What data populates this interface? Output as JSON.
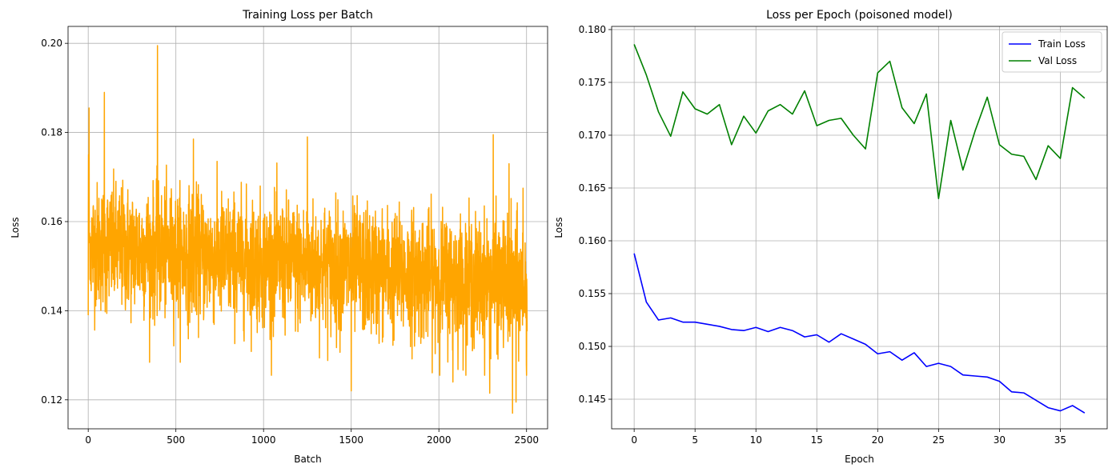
{
  "chart_data": [
    {
      "type": "line",
      "title": "Training Loss per Batch",
      "xlabel": "Batch",
      "ylabel": "Loss",
      "xlim": [
        -115,
        2620
      ],
      "ylim": [
        0.1135,
        0.2038
      ],
      "xticks": [
        0,
        500,
        1000,
        1500,
        2000,
        2500
      ],
      "yticks": [
        0.12,
        0.14,
        0.16,
        0.18,
        0.2
      ],
      "ytick_labels": [
        "0.12",
        "0.14",
        "0.16",
        "0.18",
        "0.20"
      ],
      "grid": true,
      "colors": {
        "series": "#FFA500"
      },
      "series": [
        {
          "n_points": 2504,
          "x_start": 0,
          "y_mean_start": 0.1545,
          "y_mean_end": 0.1455,
          "y_spread": 0.0115,
          "spikes": [
            {
              "x": 0,
              "y": 0.139
            },
            {
              "x": 2,
              "y": 0.175
            },
            {
              "x": 5,
              "y": 0.1855
            },
            {
              "x": 10,
              "y": 0.147
            },
            {
              "x": 92,
              "y": 0.189
            },
            {
              "x": 395,
              "y": 0.1995
            },
            {
              "x": 600,
              "y": 0.1785
            },
            {
              "x": 1250,
              "y": 0.179
            },
            {
              "x": 1500,
              "y": 0.122
            },
            {
              "x": 2080,
              "y": 0.124
            },
            {
              "x": 2290,
              "y": 0.1215
            },
            {
              "x": 2310,
              "y": 0.1795
            },
            {
              "x": 2400,
              "y": 0.173
            },
            {
              "x": 2420,
              "y": 0.117
            },
            {
              "x": 2440,
              "y": 0.1195
            },
            {
              "x": 2480,
              "y": 0.1675
            },
            {
              "x": 2500,
              "y": 0.1255
            }
          ]
        }
      ]
    },
    {
      "type": "line",
      "title": "Loss per Epoch (poisoned model)",
      "xlabel": "Epoch",
      "ylabel": "Loss",
      "xlim": [
        -1.85,
        38.85
      ],
      "ylim": [
        0.1422,
        0.1803
      ],
      "xticks": [
        0,
        5,
        10,
        15,
        20,
        25,
        30,
        35
      ],
      "yticks": [
        0.145,
        0.15,
        0.155,
        0.16,
        0.165,
        0.17,
        0.175,
        0.18
      ],
      "ytick_labels": [
        "0.145",
        "0.150",
        "0.155",
        "0.160",
        "0.165",
        "0.170",
        "0.175",
        "0.180"
      ],
      "grid": true,
      "legend": "top-right",
      "x": [
        0,
        1,
        2,
        3,
        4,
        5,
        6,
        7,
        8,
        9,
        10,
        11,
        12,
        13,
        14,
        15,
        16,
        17,
        18,
        19,
        20,
        21,
        22,
        23,
        24,
        25,
        26,
        27,
        28,
        29,
        30,
        31,
        32,
        33,
        34,
        35,
        36,
        37
      ],
      "series": [
        {
          "name": "Train Loss",
          "color": "#0000FF",
          "values": [
            0.1588,
            0.1542,
            0.1525,
            0.1527,
            0.1523,
            0.1523,
            0.1521,
            0.1519,
            0.1516,
            0.1515,
            0.1518,
            0.1514,
            0.1518,
            0.1515,
            0.1509,
            0.1511,
            0.1504,
            0.1512,
            0.1507,
            0.1502,
            0.1493,
            0.1495,
            0.1487,
            0.1494,
            0.1481,
            0.1484,
            0.1481,
            0.1473,
            0.1472,
            0.1471,
            0.1467,
            0.1457,
            0.1456,
            0.1449,
            0.1442,
            0.1439,
            0.1444,
            0.1437
          ]
        },
        {
          "name": "Val Loss",
          "color": "#008000",
          "values": [
            0.1786,
            0.1757,
            0.1722,
            0.1699,
            0.1741,
            0.1725,
            0.172,
            0.1729,
            0.1691,
            0.1718,
            0.1702,
            0.1723,
            0.1729,
            0.172,
            0.1742,
            0.1709,
            0.1714,
            0.1716,
            0.17,
            0.1687,
            0.1759,
            0.177,
            0.1726,
            0.1711,
            0.1739,
            0.164,
            0.1714,
            0.1667,
            0.1704,
            0.1736,
            0.1691,
            0.1682,
            0.168,
            0.1658,
            0.169,
            0.1678,
            0.1745,
            0.1735
          ]
        }
      ]
    }
  ]
}
